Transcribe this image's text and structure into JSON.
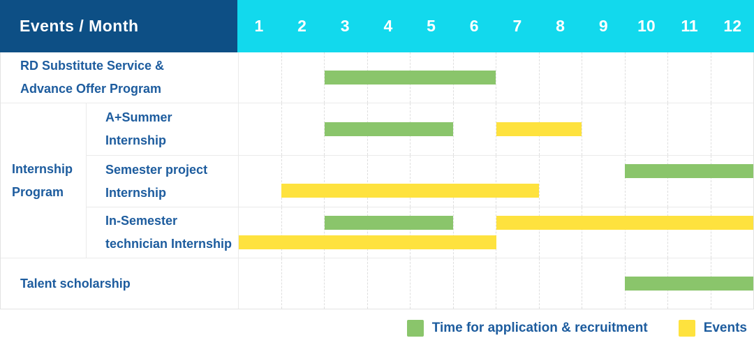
{
  "header": {
    "title": "Events / Month",
    "months": [
      "1",
      "2",
      "3",
      "4",
      "5",
      "6",
      "7",
      "8",
      "9",
      "10",
      "11",
      "12"
    ]
  },
  "rows": [
    {
      "id": "rd-substitute",
      "label": "RD Substitute Service &\nAdvance Offer Program"
    },
    {
      "id": "internship-program-group",
      "label": "Internship\nProgram",
      "children": [
        {
          "id": "a-plus-summer",
          "label": "A+Summer\nInternship"
        },
        {
          "id": "semester-project",
          "label": "Semester project\nInternship"
        },
        {
          "id": "in-semester-technician",
          "label": "In-Semester\ntechnician Internship"
        }
      ]
    },
    {
      "id": "talent-scholarship",
      "label": "Talent scholarship"
    }
  ],
  "legend": {
    "items": [
      {
        "label": "Time for application & recruitment",
        "color": "#8ac56b"
      },
      {
        "label": "Events",
        "color": "#fee23e"
      }
    ]
  },
  "colors": {
    "header_bg": "#0d4f85",
    "month_bg": "#12d9ed",
    "label_text": "#1d5c9e",
    "green_bar": "#8ac56b",
    "yellow_bar": "#fee23e",
    "grid_solid": "#eaeaea",
    "grid_dashed": "#dedede"
  },
  "chart_data": {
    "type": "bar",
    "subtype": "gantt-timeline",
    "title": "Events / Month",
    "x_axis": {
      "label": "Month",
      "ticks": [
        1,
        2,
        3,
        4,
        5,
        6,
        7,
        8,
        9,
        10,
        11,
        12
      ],
      "range": [
        1,
        12
      ],
      "grid": "dashed-vertical"
    },
    "legend_position": "bottom-right",
    "series": [
      {
        "name": "Time for application & recruitment",
        "color": "#8ac56b"
      },
      {
        "name": "Events",
        "color": "#fee23e"
      }
    ],
    "rows": [
      {
        "group": "",
        "label": "RD Substitute Service & Advance Offer Program",
        "bars": [
          {
            "series": "Time for application & recruitment",
            "start_month": 3,
            "end_month": 6,
            "lane": "center"
          }
        ]
      },
      {
        "group": "Internship Program",
        "label": "A+Summer Internship",
        "bars": [
          {
            "series": "Time for application & recruitment",
            "start_month": 3,
            "end_month": 5,
            "lane": "center"
          },
          {
            "series": "Events",
            "start_month": 7,
            "end_month": 8,
            "lane": "center"
          }
        ]
      },
      {
        "group": "Internship Program",
        "label": "Semester project Internship",
        "bars": [
          {
            "series": "Time for application & recruitment",
            "start_month": 10,
            "end_month": 12,
            "lane": "top"
          },
          {
            "series": "Events",
            "start_month": 2,
            "end_month": 7,
            "lane": "bottom"
          }
        ]
      },
      {
        "group": "Internship Program",
        "label": "In-Semester technician Internship",
        "bars": [
          {
            "series": "Time for application & recruitment",
            "start_month": 3,
            "end_month": 5,
            "lane": "top"
          },
          {
            "series": "Events",
            "start_month": 7,
            "end_month": 12,
            "lane": "top"
          },
          {
            "series": "Events",
            "start_month": 1,
            "end_month": 6,
            "lane": "bottom"
          }
        ]
      },
      {
        "group": "",
        "label": "Talent scholarship",
        "bars": [
          {
            "series": "Time for application & recruitment",
            "start_month": 10,
            "end_month": 12,
            "lane": "center"
          }
        ]
      }
    ]
  }
}
